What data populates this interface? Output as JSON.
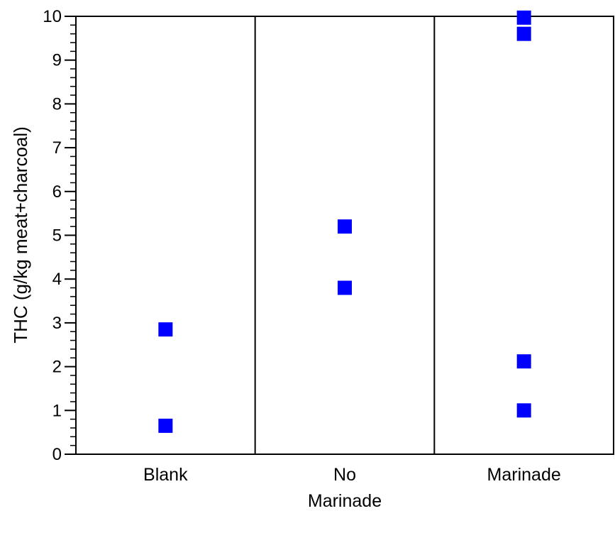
{
  "chart_data": {
    "type": "scatter",
    "ylabel": "THC (g/kg meat+charcoal)",
    "ylim": [
      0,
      10
    ],
    "yticks": [
      0,
      1,
      2,
      3,
      4,
      5,
      6,
      7,
      8,
      9,
      10
    ],
    "grid": false,
    "categories": [
      {
        "label": "Blank",
        "label_lines": [
          "Blank"
        ]
      },
      {
        "label": "No Marinade",
        "label_lines": [
          "No",
          "Marinade"
        ]
      },
      {
        "label": "Marinade",
        "label_lines": [
          "Marinade"
        ]
      }
    ],
    "series": [
      {
        "color": "#0000ff",
        "marker": "square",
        "points": [
          {
            "category": "Blank",
            "y": 2.85
          },
          {
            "category": "Blank",
            "y": 0.65
          },
          {
            "category": "No Marinade",
            "y": 5.2
          },
          {
            "category": "No Marinade",
            "y": 3.8
          },
          {
            "category": "Marinade",
            "y": 9.97
          },
          {
            "category": "Marinade",
            "y": 9.6
          },
          {
            "category": "Marinade",
            "y": 2.12
          },
          {
            "category": "Marinade",
            "y": 1.0
          }
        ]
      }
    ]
  }
}
